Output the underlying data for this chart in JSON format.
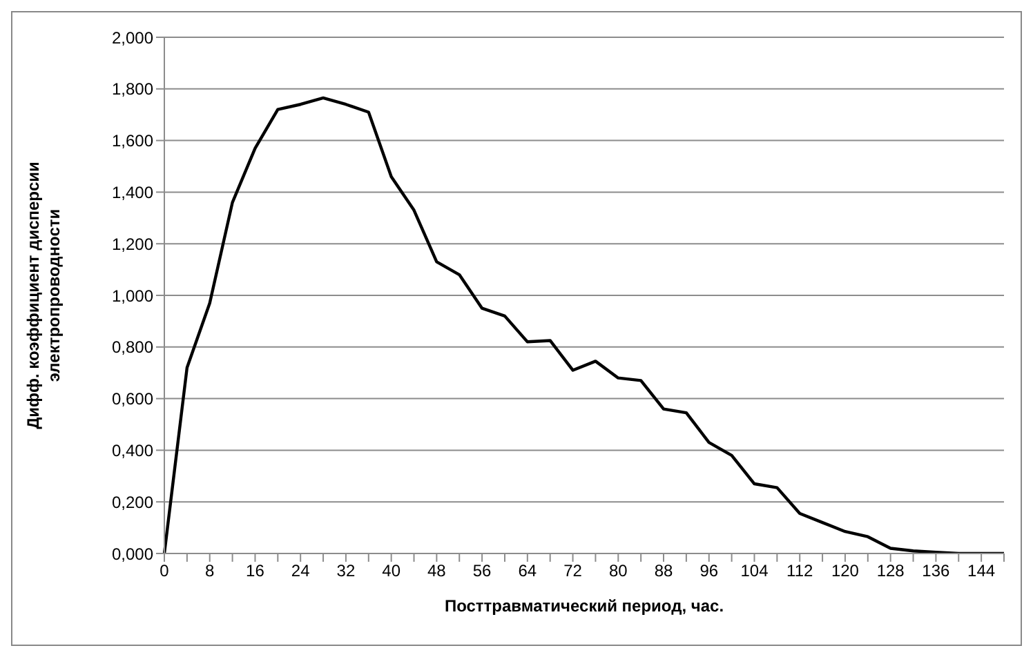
{
  "chart_data": {
    "type": "line",
    "xlabel": "Посттравматический  период, час.",
    "ylabel": "Дифф. коэффициент дисперсии\nэлектропроводности",
    "categories": [
      "0",
      null,
      "8",
      null,
      "16",
      null,
      "24",
      null,
      "32",
      null,
      "40",
      null,
      "48",
      null,
      "56",
      null,
      "64",
      null,
      "72",
      null,
      "80",
      null,
      "88",
      null,
      "96",
      null,
      "104",
      null,
      "112",
      null,
      "120",
      null,
      "128",
      null,
      "136",
      null,
      "144",
      null
    ],
    "series": [
      {
        "color": "#000000",
        "values": [
          0,
          0.72,
          0.97,
          1.36,
          1.57,
          1.72,
          1.74,
          1.765,
          1.74,
          1.71,
          1.46,
          1.33,
          1.13,
          1.08,
          0.95,
          0.92,
          0.82,
          0.825,
          0.71,
          0.745,
          0.68,
          0.67,
          0.56,
          0.545,
          0.43,
          0.38,
          0.27,
          0.255,
          0.155,
          0.12,
          0.085,
          0.065,
          0.02,
          0.01,
          0.005,
          0,
          0,
          0
        ]
      }
    ],
    "ylim": [
      0,
      2
    ],
    "yticks": [
      {
        "value": 0,
        "label": "0,000"
      },
      {
        "value": 0.2,
        "label": "0,200"
      },
      {
        "value": 0.4,
        "label": "0,400"
      },
      {
        "value": 0.6,
        "label": "0,600"
      },
      {
        "value": 0.8,
        "label": "0,800"
      },
      {
        "value": 1,
        "label": "1,000"
      },
      {
        "value": 1.2,
        "label": "1,200"
      },
      {
        "value": 1.4,
        "label": "1,400"
      },
      {
        "value": 1.6,
        "label": "1,600"
      },
      {
        "value": 1.8,
        "label": "1,800"
      },
      {
        "value": 2,
        "label": "2,000"
      }
    ],
    "grid": "y",
    "marker": "none",
    "line_style": "solid"
  }
}
